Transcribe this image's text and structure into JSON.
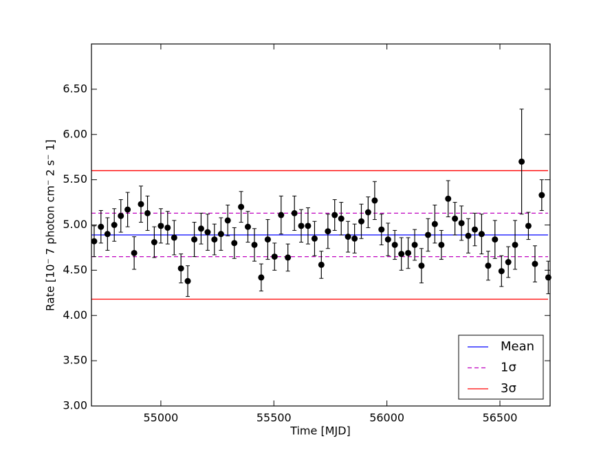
{
  "chart_data": {
    "type": "errorbar-scatter",
    "xlabel": "Time [MJD]",
    "ylabel": "Rate [10⁻ 7 photon cm⁻ 2 s⁻ 1]",
    "xlim": [
      54693,
      56722
    ],
    "ylim": [
      3.0,
      7.0
    ],
    "xticks": [
      55000,
      55500,
      56000,
      56500
    ],
    "yticks": [
      {
        "value": 3.0,
        "label": "3.00"
      },
      {
        "value": 3.5,
        "label": "3.50"
      },
      {
        "value": 4.0,
        "label": "4.00"
      },
      {
        "value": 4.5,
        "label": "4.50"
      },
      {
        "value": 5.0,
        "label": "5.00"
      },
      {
        "value": 5.5,
        "label": "5.50"
      },
      {
        "value": 6.0,
        "label": "6.00"
      },
      {
        "value": 6.5,
        "label": "6.50"
      }
    ],
    "legend_loc": "lower right",
    "x": [
      54705,
      54735,
      54764,
      54794,
      54823,
      54853,
      54882,
      54912,
      54941,
      54971,
      55000,
      55030,
      55059,
      55089,
      55119,
      55148,
      55178,
      55207,
      55237,
      55266,
      55296,
      55325,
      55355,
      55385,
      55414,
      55444,
      55473,
      55503,
      55532,
      55562,
      55591,
      55621,
      55651,
      55680,
      55710,
      55739,
      55769,
      55798,
      55828,
      55857,
      55887,
      55917,
      55946,
      55976,
      56005,
      56035,
      56064,
      56094,
      56123,
      56153,
      56182,
      56212,
      56241,
      56271,
      56301,
      56330,
      56360,
      56389,
      56419,
      56448,
      56478,
      56507,
      56537,
      56567,
      56596,
      56626,
      56655,
      56685,
      56714
    ],
    "series": [
      {
        "color": "#000000",
        "values": [
          4.82,
          4.98,
          4.9,
          5.0,
          5.1,
          5.17,
          4.69,
          5.23,
          5.13,
          4.81,
          4.99,
          4.97,
          4.86,
          4.52,
          4.38,
          4.84,
          4.96,
          4.92,
          4.84,
          4.9,
          5.05,
          4.8,
          5.2,
          4.98,
          4.78,
          4.42,
          4.84,
          4.65,
          5.11,
          4.64,
          5.13,
          4.99,
          4.99,
          4.85,
          4.56,
          4.93,
          5.11,
          5.07,
          4.87,
          4.85,
          5.04,
          5.14,
          5.27,
          4.95,
          4.84,
          4.78,
          4.68,
          4.69,
          4.78,
          4.55,
          4.89,
          5.01,
          4.78,
          5.29,
          5.07,
          5.02,
          4.88,
          4.95,
          4.9,
          4.55,
          4.84,
          4.49,
          4.59,
          4.78,
          5.7,
          4.99,
          4.57,
          5.33,
          4.42
        ],
        "errors": [
          0.17,
          0.18,
          0.18,
          0.18,
          0.18,
          0.19,
          0.18,
          0.2,
          0.19,
          0.17,
          0.19,
          0.18,
          0.19,
          0.16,
          0.17,
          0.19,
          0.17,
          0.2,
          0.17,
          0.18,
          0.17,
          0.17,
          0.17,
          0.17,
          0.18,
          0.15,
          0.22,
          0.15,
          0.21,
          0.15,
          0.19,
          0.18,
          0.2,
          0.19,
          0.15,
          0.19,
          0.17,
          0.18,
          0.17,
          0.16,
          0.19,
          0.17,
          0.21,
          0.17,
          0.18,
          0.16,
          0.18,
          0.17,
          0.17,
          0.19,
          0.18,
          0.21,
          0.16,
          0.2,
          0.18,
          0.19,
          0.19,
          0.18,
          0.22,
          0.16,
          0.21,
          0.17,
          0.17,
          0.27,
          0.58,
          0.15,
          0.2,
          0.17,
          0.18
        ]
      }
    ],
    "reference_lines": [
      {
        "name": "Mean",
        "color": "#0000ff",
        "style": "solid",
        "values": [
          4.89
        ]
      },
      {
        "name": "1σ",
        "color": "#bf00bf",
        "style": "dashed",
        "values": [
          5.13,
          4.65
        ]
      },
      {
        "name": "3σ",
        "color": "#ff0000",
        "style": "solid",
        "values": [
          5.6,
          4.18
        ]
      }
    ]
  }
}
